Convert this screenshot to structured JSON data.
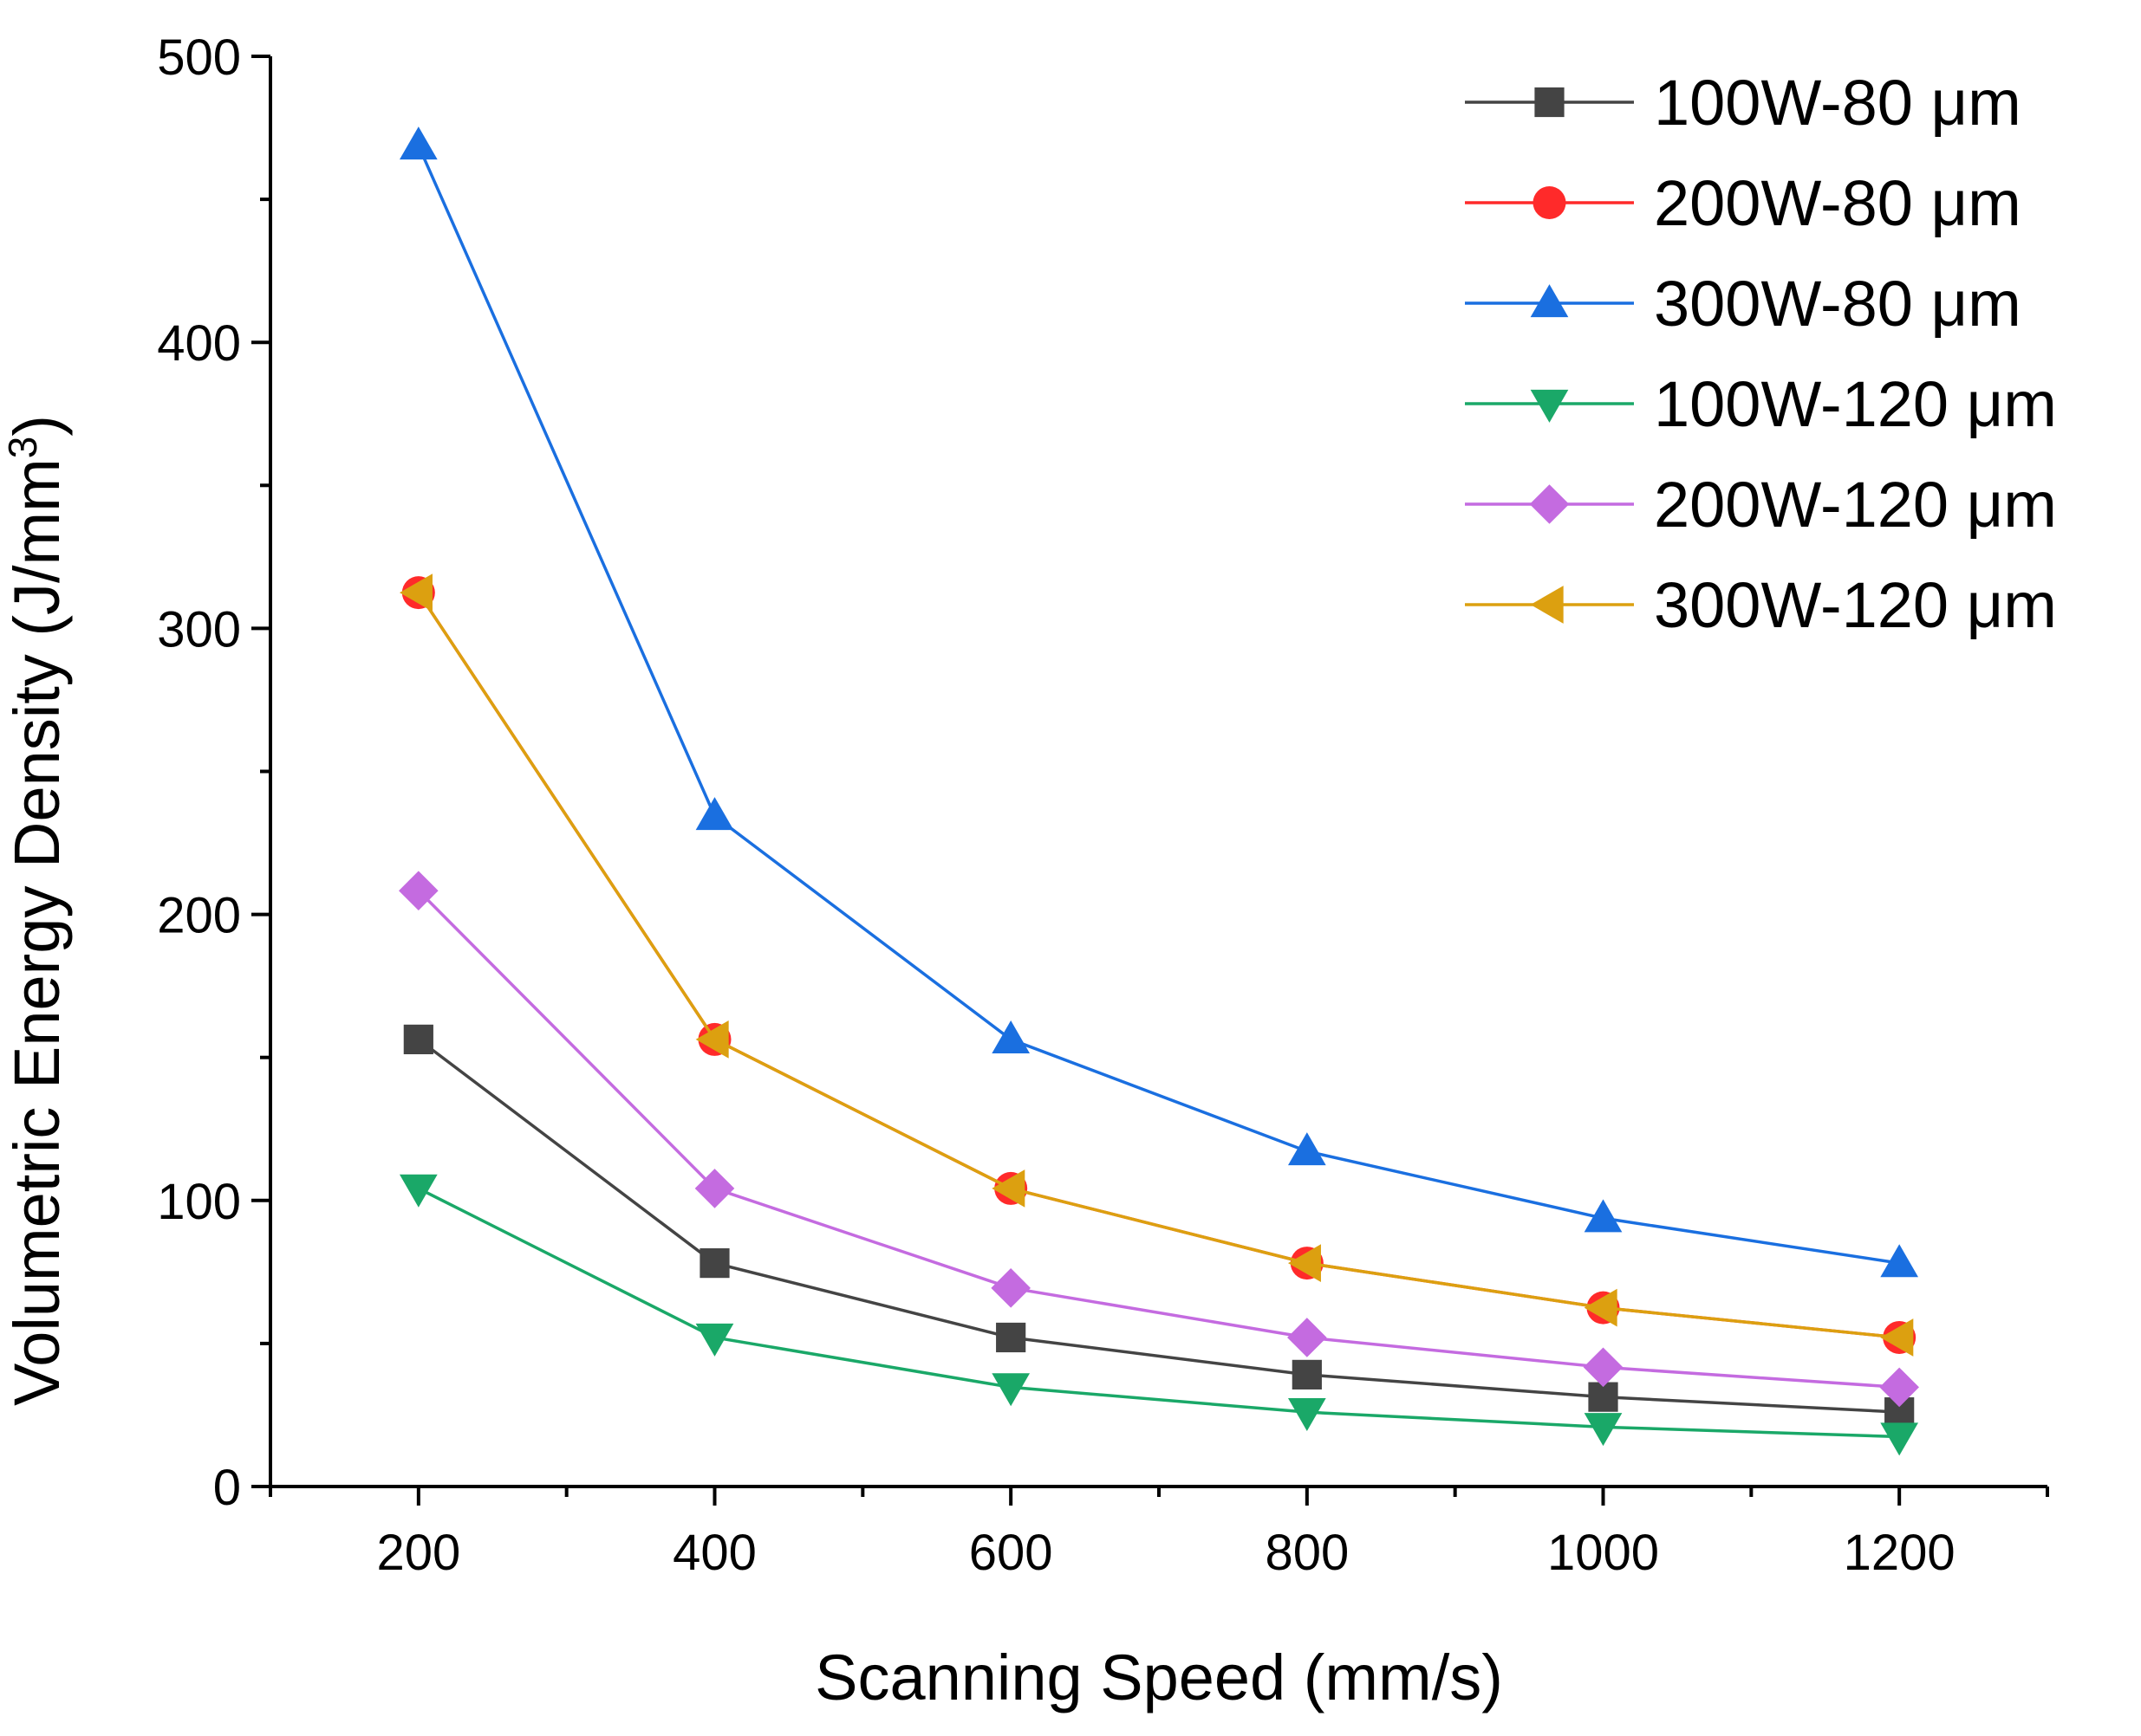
{
  "chart_data": {
    "type": "line",
    "title": "",
    "xlabel": "Scanning Speed (mm/s)",
    "ylabel_main": "Volumetric Energy Density (J/mm",
    "ylabel_sup": "3",
    "ylabel_close": ")",
    "x": [
      200,
      400,
      600,
      800,
      1000,
      1200
    ],
    "xlim": [
      100,
      1300
    ],
    "ylim": [
      0,
      500
    ],
    "x_ticks": [
      200,
      400,
      600,
      800,
      1000,
      1200
    ],
    "x_tick_labels": [
      "200",
      "400",
      "600",
      "800",
      "1000",
      "1200"
    ],
    "y_ticks": [
      0,
      100,
      200,
      300,
      400,
      500
    ],
    "y_tick_labels": [
      "0",
      "100",
      "200",
      "300",
      "400",
      "500"
    ],
    "grid": false,
    "legend_position": "top-right",
    "series": [
      {
        "name": "100W-80 μm",
        "color": "#444444",
        "marker": "square",
        "values": [
          156.3,
          78.1,
          52.1,
          39.1,
          31.3,
          26.0
        ]
      },
      {
        "name": "200W-80 μm",
        "color": "#ff2a2a",
        "marker": "circle",
        "values": [
          312.5,
          156.3,
          104.2,
          78.1,
          62.5,
          52.1
        ]
      },
      {
        "name": "300W-80 μm",
        "color": "#1a6fe0",
        "marker": "triangle-up",
        "values": [
          468.8,
          234.4,
          156.3,
          117.2,
          93.8,
          78.1
        ]
      },
      {
        "name": "100W-120 μm",
        "color": "#1aa868",
        "marker": "triangle-down",
        "values": [
          104.2,
          52.1,
          34.7,
          26.0,
          20.8,
          17.4
        ]
      },
      {
        "name": "200W-120 μm",
        "color": "#c46be0",
        "marker": "diamond",
        "values": [
          208.3,
          104.2,
          69.4,
          52.1,
          41.7,
          34.7
        ]
      },
      {
        "name": "300W-120 μm",
        "color": "#dca010",
        "marker": "triangle-left",
        "values": [
          312.5,
          156.3,
          104.2,
          78.1,
          62.5,
          52.1
        ]
      }
    ]
  }
}
